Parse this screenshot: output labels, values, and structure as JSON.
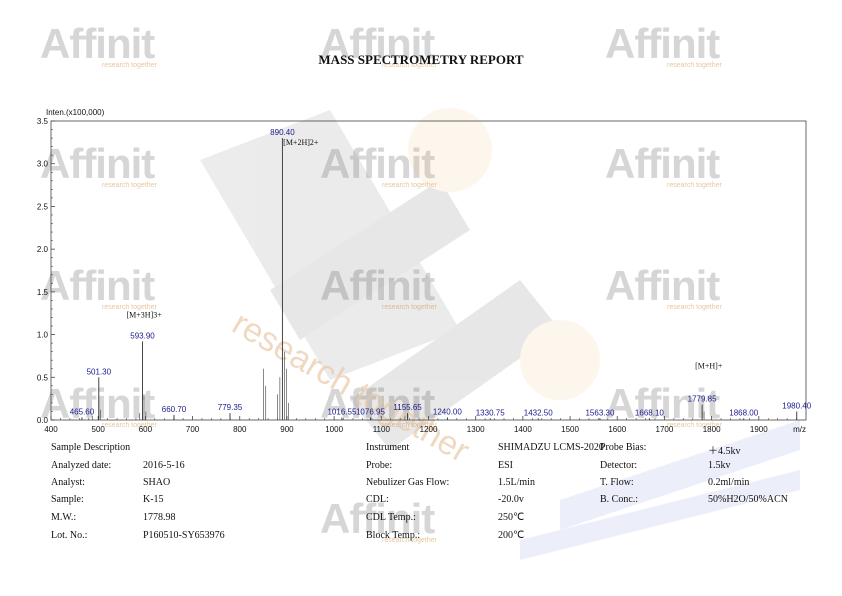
{
  "watermark": {
    "logo_text": "Affinit",
    "sub_text": "research together",
    "diagonal_text": "research together"
  },
  "report_title": "MASS SPECTROMETRY REPORT",
  "chart_data": {
    "type": "bar",
    "title": "",
    "ylabel": "Inten.(x100,000)",
    "xlabel": "m/z",
    "xlim": [
      400,
      2000
    ],
    "ylim": [
      0,
      3.5
    ],
    "x_ticks": [
      "400",
      "500",
      "600",
      "700",
      "800",
      "900",
      "1000",
      "1100",
      "1200",
      "1300",
      "1400",
      "1500",
      "1600",
      "1700",
      "1800",
      "1900"
    ],
    "y_ticks": [
      "0.0",
      "0.5",
      "1.0",
      "1.5",
      "2.0",
      "2.5",
      "3.0",
      "3.5"
    ],
    "grid": false,
    "peaks": [
      {
        "mz": 465.6,
        "intensity": 0.03,
        "label": "465.60"
      },
      {
        "mz": 501.3,
        "intensity": 0.5,
        "label": "501.30"
      },
      {
        "mz": 593.9,
        "intensity": 0.92,
        "label": "593.90"
      },
      {
        "mz": 660.7,
        "intensity": 0.06,
        "label": "660.70"
      },
      {
        "mz": 779.35,
        "intensity": 0.08,
        "label": "779.35"
      },
      {
        "mz": 890.4,
        "intensity": 3.3,
        "label": "890.40"
      },
      {
        "mz": 1016.55,
        "intensity": 0.03,
        "label": "1016.55"
      },
      {
        "mz": 1076.95,
        "intensity": 0.03,
        "label": "1076.95"
      },
      {
        "mz": 1155.65,
        "intensity": 0.08,
        "label": "1155.65"
      },
      {
        "mz": 1240.0,
        "intensity": 0.03,
        "label": "1240.00"
      },
      {
        "mz": 1330.75,
        "intensity": 0.02,
        "label": "1330.75"
      },
      {
        "mz": 1432.5,
        "intensity": 0.02,
        "label": "1432.50"
      },
      {
        "mz": 1563.3,
        "intensity": 0.02,
        "label": "1563.30"
      },
      {
        "mz": 1668.1,
        "intensity": 0.02,
        "label": "1668.10"
      },
      {
        "mz": 1779.85,
        "intensity": 0.18,
        "label": "1779.85"
      },
      {
        "mz": 1868.0,
        "intensity": 0.02,
        "label": "1868.00"
      },
      {
        "mz": 1980.4,
        "intensity": 0.1,
        "label": "1980.40"
      }
    ],
    "minor_peaks": [
      {
        "mz": 488,
        "intensity": 0.05
      },
      {
        "mz": 505,
        "intensity": 0.12
      },
      {
        "mz": 588,
        "intensity": 0.08
      },
      {
        "mz": 597,
        "intensity": 0.3
      },
      {
        "mz": 601,
        "intensity": 0.1
      },
      {
        "mz": 850,
        "intensity": 0.6
      },
      {
        "mz": 855,
        "intensity": 0.4
      },
      {
        "mz": 880,
        "intensity": 0.3
      },
      {
        "mz": 885,
        "intensity": 0.5
      },
      {
        "mz": 895,
        "intensity": 0.8
      },
      {
        "mz": 899,
        "intensity": 0.6
      },
      {
        "mz": 903,
        "intensity": 0.2
      },
      {
        "mz": 1150,
        "intensity": 0.04
      },
      {
        "mz": 1784,
        "intensity": 0.1
      }
    ],
    "annotations": [
      {
        "text": "[M+2H]2+",
        "mz": 892,
        "y": 3.22
      },
      {
        "text": "[M+3H]3+",
        "mz": 560,
        "y": 1.2
      },
      {
        "text": "[M+H]+",
        "mz": 1765,
        "y": 0.6
      }
    ]
  },
  "info_left": [
    {
      "label": "Sample Description",
      "value": ""
    },
    {
      "label": "Analyzed date:",
      "value": "2016-5-16"
    },
    {
      "label": "Analyst:",
      "value": "SHAO"
    },
    {
      "label": "Sample:",
      "value": "K-15"
    },
    {
      "label": "M.W.:",
      "value": "1778.98"
    },
    {
      "label": "Lot. No.:",
      "value": "P160510-SY653976"
    }
  ],
  "info_mid": [
    {
      "label": "Instrument",
      "value": "SHIMADZU LCMS-2020"
    },
    {
      "label": "Probe:",
      "value": "ESI"
    },
    {
      "label": "Nebulizer Gas Flow:",
      "value": "1.5L/min"
    },
    {
      "label": "CDL:",
      "value": "-20.0v"
    },
    {
      "label": "CDL Temp.:",
      "value": "250℃"
    },
    {
      "label": "Block Temp.:",
      "value": "200℃"
    }
  ],
  "info_right": [
    {
      "label": "Probe Bias:",
      "value": "＋4.5kv"
    },
    {
      "label": "Detector:",
      "value": "1.5kv"
    },
    {
      "label": "T. Flow:",
      "value": "0.2ml/min"
    },
    {
      "label": "B. Conc.:",
      "value": "50%H2O/50%ACN"
    }
  ]
}
